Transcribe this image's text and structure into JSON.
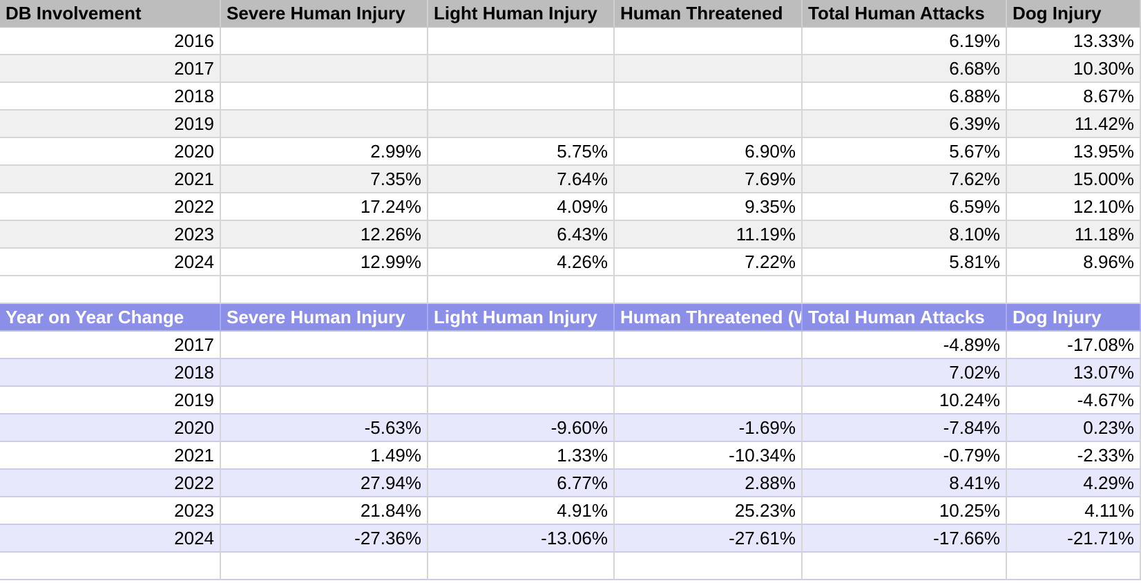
{
  "table1": {
    "headers": [
      "DB Involvement",
      "Severe Human Injury",
      "Light Human Injury",
      "Human Threatened",
      "Total Human Attacks",
      "Dog Injury"
    ],
    "rows": [
      [
        "2016",
        "",
        "",
        "",
        "6.19%",
        "13.33%"
      ],
      [
        "2017",
        "",
        "",
        "",
        "6.68%",
        "10.30%"
      ],
      [
        "2018",
        "",
        "",
        "",
        "6.88%",
        "8.67%"
      ],
      [
        "2019",
        "",
        "",
        "",
        "6.39%",
        "11.42%"
      ],
      [
        "2020",
        "2.99%",
        "5.75%",
        "6.90%",
        "5.67%",
        "13.95%"
      ],
      [
        "2021",
        "7.35%",
        "7.64%",
        "7.69%",
        "7.62%",
        "15.00%"
      ],
      [
        "2022",
        "17.24%",
        "4.09%",
        "9.35%",
        "6.59%",
        "12.10%"
      ],
      [
        "2023",
        "12.26%",
        "6.43%",
        "11.19%",
        "8.10%",
        "11.18%"
      ],
      [
        "2024",
        "12.99%",
        "4.26%",
        "7.22%",
        "5.81%",
        "8.96%"
      ]
    ]
  },
  "table2": {
    "headers": [
      "Year on Year Change",
      "Severe Human Injury",
      "Light Human Injury",
      "Human Threatened (W",
      "Total Human Attacks",
      "Dog Injury"
    ],
    "rows": [
      [
        "2017",
        "",
        "",
        "",
        "-4.89%",
        "-17.08%"
      ],
      [
        "2018",
        "",
        "",
        "",
        "7.02%",
        "13.07%"
      ],
      [
        "2019",
        "",
        "",
        "",
        "10.24%",
        "-4.67%"
      ],
      [
        "2020",
        "-5.63%",
        "-9.60%",
        "-1.69%",
        "-7.84%",
        "0.23%"
      ],
      [
        "2021",
        "1.49%",
        "1.33%",
        "-10.34%",
        "-0.79%",
        "-2.33%"
      ],
      [
        "2022",
        "27.94%",
        "6.77%",
        "2.88%",
        "8.41%",
        "4.29%"
      ],
      [
        "2023",
        "21.84%",
        "4.91%",
        "25.23%",
        "10.25%",
        "4.11%"
      ],
      [
        "2024",
        "-27.36%",
        "-13.06%",
        "-27.61%",
        "-17.66%",
        "-21.71%"
      ]
    ]
  },
  "colors": {
    "header1_bg": "#bdbdbd",
    "header2_bg": "#8b8fe8",
    "band1_bg": "#f0f0f0",
    "band2_bg": "#e7e8fb"
  }
}
